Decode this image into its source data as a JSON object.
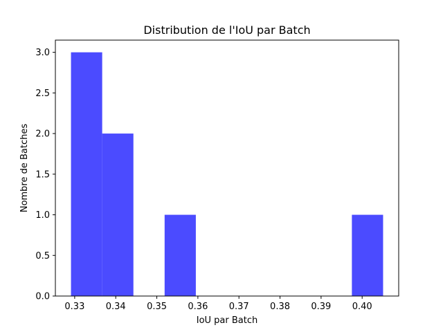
{
  "chart_data": {
    "type": "bar",
    "title": "Distribution de l'IoU par Batch",
    "xlabel": "IoU par Batch",
    "ylabel": "Nombre de Batches",
    "bins": [
      {
        "x0": 0.3291,
        "x1": 0.3367,
        "count": 3
      },
      {
        "x0": 0.3367,
        "x1": 0.3443,
        "count": 2
      },
      {
        "x0": 0.3443,
        "x1": 0.3519,
        "count": 0
      },
      {
        "x0": 0.3519,
        "x1": 0.3595,
        "count": 1
      },
      {
        "x0": 0.3595,
        "x1": 0.3671,
        "count": 0
      },
      {
        "x0": 0.3671,
        "x1": 0.3747,
        "count": 0
      },
      {
        "x0": 0.3747,
        "x1": 0.3823,
        "count": 0
      },
      {
        "x0": 0.3823,
        "x1": 0.3899,
        "count": 0
      },
      {
        "x0": 0.3899,
        "x1": 0.3975,
        "count": 0
      },
      {
        "x0": 0.3975,
        "x1": 0.4051,
        "count": 1
      }
    ],
    "xlim": [
      0.3253,
      0.4089
    ],
    "ylim": [
      0,
      3.15
    ],
    "xticks": [
      {
        "value": 0.33,
        "label": "0.33"
      },
      {
        "value": 0.34,
        "label": "0.34"
      },
      {
        "value": 0.35,
        "label": "0.35"
      },
      {
        "value": 0.36,
        "label": "0.36"
      },
      {
        "value": 0.37,
        "label": "0.37"
      },
      {
        "value": 0.38,
        "label": "0.38"
      },
      {
        "value": 0.39,
        "label": "0.39"
      },
      {
        "value": 0.4,
        "label": "0.40"
      }
    ],
    "yticks": [
      {
        "value": 0.0,
        "label": "0.0"
      },
      {
        "value": 0.5,
        "label": "0.5"
      },
      {
        "value": 1.0,
        "label": "1.0"
      },
      {
        "value": 1.5,
        "label": "1.5"
      },
      {
        "value": 2.0,
        "label": "2.0"
      },
      {
        "value": 2.5,
        "label": "2.5"
      },
      {
        "value": 3.0,
        "label": "3.0"
      }
    ],
    "bar_color": "#4b4bff",
    "grid": false
  }
}
